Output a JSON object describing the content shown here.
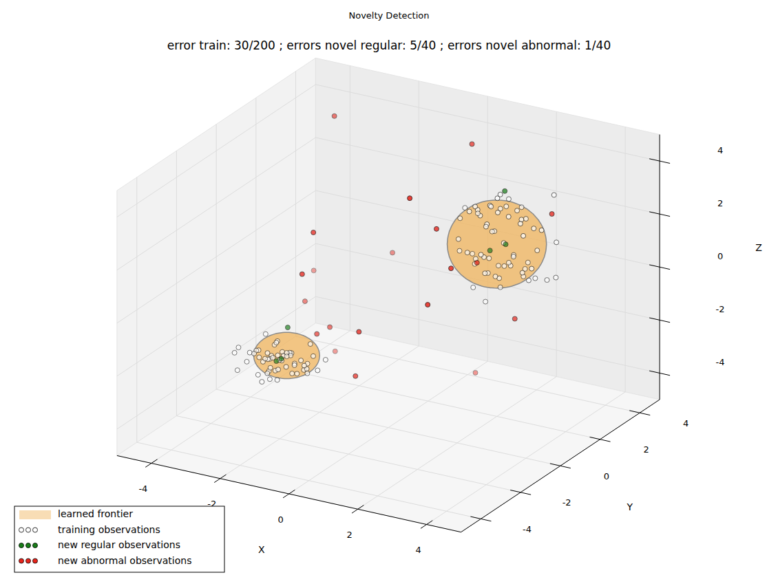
{
  "chart_data": {
    "type": "scatter3d",
    "suptitle": "Novelty Detection",
    "title": "error train: 30/200 ; errors novel regular: 5/40 ; errors novel abnormal: 1/40",
    "x_label": "X",
    "y_label": "Y",
    "z_label": "Z",
    "xlim": [
      -5,
      5
    ],
    "ylim": [
      -5,
      5
    ],
    "zlim": [
      -5,
      5
    ],
    "xticks": [
      -4,
      -2,
      0,
      2,
      4
    ],
    "yticks": [
      -4,
      -2,
      0,
      2,
      4
    ],
    "zticks": [
      -4,
      -2,
      0,
      2,
      4
    ],
    "grid": true,
    "legend": "lower left",
    "series": [
      {
        "name": "learned frontier",
        "type": "surface",
        "color": "#f0b45c",
        "ellipsoids": [
          {
            "center": [
              2,
              2,
              1.5
            ],
            "radii": [
              1.25,
              1.25,
              1.5
            ]
          },
          {
            "center": [
              -1.8,
              -2,
              -1.8
            ],
            "radii": [
              0.83,
              0.83,
              0.73
            ]
          }
        ]
      },
      {
        "name": "training observations",
        "type": "scatter",
        "color": "#ffffff",
        "marker": "o",
        "points": [
          [
            2.1,
            2.3,
            2.8
          ],
          [
            1.8,
            2.0,
            2.9
          ],
          [
            2.4,
            1.9,
            2.7
          ],
          [
            1.6,
            2.4,
            2.6
          ],
          [
            2.0,
            2.6,
            2.9
          ],
          [
            2.6,
            2.2,
            2.5
          ],
          [
            1.5,
            1.9,
            2.7
          ],
          [
            2.2,
            1.7,
            2.9
          ],
          [
            1.9,
            2.2,
            3.1
          ],
          [
            2.3,
            2.5,
            2.6
          ],
          [
            1.7,
            2.7,
            2.4
          ],
          [
            2.8,
            1.8,
            2.6
          ],
          [
            1.4,
            2.2,
            2.3
          ],
          [
            2.5,
            2.6,
            2.3
          ],
          [
            2.0,
            1.5,
            2.5
          ],
          [
            1.2,
            2.0,
            2.5
          ],
          [
            2.9,
            2.3,
            2.2
          ],
          [
            1.8,
            1.8,
            2.2
          ],
          [
            2.2,
            2.9,
            2.5
          ],
          [
            1.1,
            2.6,
            2.1
          ],
          [
            3.0,
            1.6,
            2.3
          ],
          [
            2.1,
            2.0,
            3.4
          ],
          [
            0.9,
            2.3,
            2.4
          ],
          [
            3.3,
            2.0,
            2.4
          ],
          [
            1.6,
            1.6,
            3.0
          ],
          [
            2.1,
            2.2,
            0.6
          ],
          [
            1.8,
            1.9,
            0.4
          ],
          [
            2.4,
            2.0,
            0.8
          ],
          [
            1.6,
            2.3,
            0.7
          ],
          [
            2.0,
            2.6,
            0.5
          ],
          [
            2.6,
            2.3,
            0.3
          ],
          [
            1.5,
            1.8,
            0.9
          ],
          [
            2.3,
            1.6,
            0.5
          ],
          [
            1.9,
            2.1,
            0.2
          ],
          [
            2.2,
            2.5,
            0.9
          ],
          [
            1.7,
            2.6,
            0.3
          ],
          [
            2.8,
            1.9,
            0.7
          ],
          [
            1.3,
            2.1,
            0.5
          ],
          [
            2.5,
            2.7,
            0.6
          ],
          [
            2.0,
            1.4,
            0.7
          ],
          [
            1.2,
            1.9,
            1.0
          ],
          [
            3.0,
            2.2,
            0.4
          ],
          [
            1.8,
            1.7,
            1.1
          ],
          [
            2.3,
            2.9,
            0.2
          ],
          [
            1.0,
            2.5,
            0.6
          ],
          [
            3.1,
            1.7,
            0.6
          ],
          [
            2.1,
            2.0,
            -0.1
          ],
          [
            0.8,
            2.2,
            0.8
          ],
          [
            3.4,
            2.1,
            0.5
          ],
          [
            1.6,
            1.5,
            0.0
          ],
          [
            1.0,
            1.8,
            1.5
          ],
          [
            3.0,
            2.3,
            1.4
          ],
          [
            2.2,
            2.0,
            1.6
          ],
          [
            1.7,
            2.4,
            1.7
          ],
          [
            3.3,
            1.5,
            1.2
          ],
          [
            0.7,
            2.4,
            1.9
          ],
          [
            2.6,
            1.8,
            1.3
          ],
          [
            1.4,
            2.8,
            1.4
          ],
          [
            3.5,
            2.4,
            1.8
          ],
          [
            2.0,
            1.2,
            1.5
          ],
          [
            3.2,
            2.8,
            3.3
          ],
          [
            3.6,
            2.2,
            0.6
          ],
          [
            1.9,
            1.6,
            -0.5
          ],
          [
            -2.0,
            -2.1,
            -1.8
          ],
          [
            -2.3,
            -1.9,
            -2.0
          ],
          [
            -1.7,
            -2.2,
            -2.1
          ],
          [
            -2.1,
            -1.7,
            -1.9
          ],
          [
            -1.9,
            -2.4,
            -2.2
          ],
          [
            -2.5,
            -2.2,
            -1.7
          ],
          [
            -1.5,
            -1.8,
            -2.0
          ],
          [
            -2.2,
            -2.5,
            -1.9
          ],
          [
            -1.8,
            -1.6,
            -2.3
          ],
          [
            -2.4,
            -1.8,
            -2.2
          ],
          [
            -1.6,
            -2.1,
            -1.6
          ],
          [
            -2.6,
            -2.0,
            -2.1
          ],
          [
            -2.0,
            -1.5,
            -2.0
          ],
          [
            -1.4,
            -2.3,
            -1.9
          ],
          [
            -2.2,
            -2.2,
            -2.4
          ],
          [
            -2.7,
            -2.3,
            -1.8
          ],
          [
            -1.3,
            -2.0,
            -2.2
          ],
          [
            -2.0,
            -2.6,
            -1.7
          ],
          [
            -2.3,
            -1.6,
            -1.6
          ],
          [
            -1.7,
            -1.9,
            -2.5
          ],
          [
            -2.8,
            -1.8,
            -2.0
          ],
          [
            -1.2,
            -1.7,
            -1.8
          ],
          [
            -1.9,
            -2.8,
            -2.1
          ],
          [
            -2.5,
            -1.4,
            -1.9
          ],
          [
            -1.6,
            -2.5,
            -1.5
          ],
          [
            -2.1,
            -2.0,
            -1.4
          ],
          [
            -2.9,
            -2.1,
            -2.3
          ],
          [
            -1.1,
            -2.2,
            -2.0
          ],
          [
            -2.4,
            -2.4,
            -2.5
          ],
          [
            -1.8,
            -2.0,
            -1.7
          ],
          [
            -2.0,
            -1.9,
            -2.1
          ],
          [
            -2.2,
            -2.0,
            -2.0
          ],
          [
            -1.9,
            -2.2,
            -1.9
          ],
          [
            -2.1,
            -2.3,
            -2.2
          ],
          [
            -1.8,
            -1.8,
            -1.9
          ],
          [
            -2.3,
            -2.1,
            -1.8
          ],
          [
            -1.5,
            -2.0,
            -2.4
          ],
          [
            -2.6,
            -1.7,
            -2.3
          ],
          [
            -1.7,
            -2.6,
            -2.0
          ],
          [
            -2.4,
            -2.6,
            -1.6
          ],
          [
            -3.2,
            -2.0,
            -1.9
          ],
          [
            -0.9,
            -2.0,
            -2.1
          ],
          [
            -2.0,
            -2.9,
            -2.4
          ],
          [
            -1.6,
            -1.3,
            -2.4
          ],
          [
            -2.7,
            -1.5,
            -1.5
          ],
          [
            -1.0,
            -2.5,
            -1.7
          ],
          [
            -3.0,
            -2.4,
            -2.5
          ],
          [
            -1.4,
            -1.5,
            -1.5
          ],
          [
            -2.2,
            -1.3,
            -2.3
          ],
          [
            -1.9,
            -2.3,
            -2.6
          ],
          [
            -3.2,
            -2.2,
            -2.0
          ],
          [
            -0.9,
            -1.6,
            -1.9
          ],
          [
            -1.2,
            -2.0,
            -2.3
          ],
          [
            -2.0,
            -2.5,
            -2.5
          ]
        ]
      },
      {
        "name": "new regular observations",
        "type": "scatter",
        "color": "#1a7f1a",
        "marker": "o",
        "points": [
          [
            2.0,
            2.4,
            3.3
          ],
          [
            -2.0,
            -1.6,
            -1.0
          ],
          [
            2.2,
            2.1,
            1.5
          ],
          [
            1.8,
            2.0,
            1.2
          ],
          [
            -2.1,
            -2.0,
            -2.1
          ],
          [
            -1.9,
            -2.1,
            -1.9
          ]
        ]
      },
      {
        "name": "new abnormal observations",
        "type": "scatter",
        "color": "#e8251c",
        "marker": "o",
        "points": [
          [
            -3.3,
            3.0,
            4.3
          ],
          [
            0.7,
            3.0,
            4.4
          ],
          [
            1.2,
            -1.0,
            4.5
          ],
          [
            1.4,
            0.0,
            2.9
          ],
          [
            -1.6,
            -1.0,
            2.4
          ],
          [
            -1.35,
            -2.0,
            1.4
          ],
          [
            -3.9,
            3.0,
            -1.7
          ],
          [
            -3.0,
            1.0,
            -1.6
          ],
          [
            -1.9,
            3.5,
            -0.7
          ],
          [
            2.0,
            1.0,
            1.3
          ],
          [
            2.4,
            -1.0,
            2.2
          ],
          [
            2.3,
            -2.0,
            1.3
          ],
          [
            3.1,
            1.0,
            -0.5
          ],
          [
            3.6,
            2.0,
            3.1
          ],
          [
            -1.7,
            0.0,
            -1.7
          ],
          [
            -1.5,
            -1.0,
            -1.4
          ],
          [
            0.3,
            -2.0,
            -0.3
          ],
          [
            -2.7,
            2.0,
            -3.9
          ],
          [
            0.2,
            -2.0,
            -2.0
          ],
          [
            0.8,
            3.0,
            -4.2
          ]
        ]
      }
    ]
  }
}
